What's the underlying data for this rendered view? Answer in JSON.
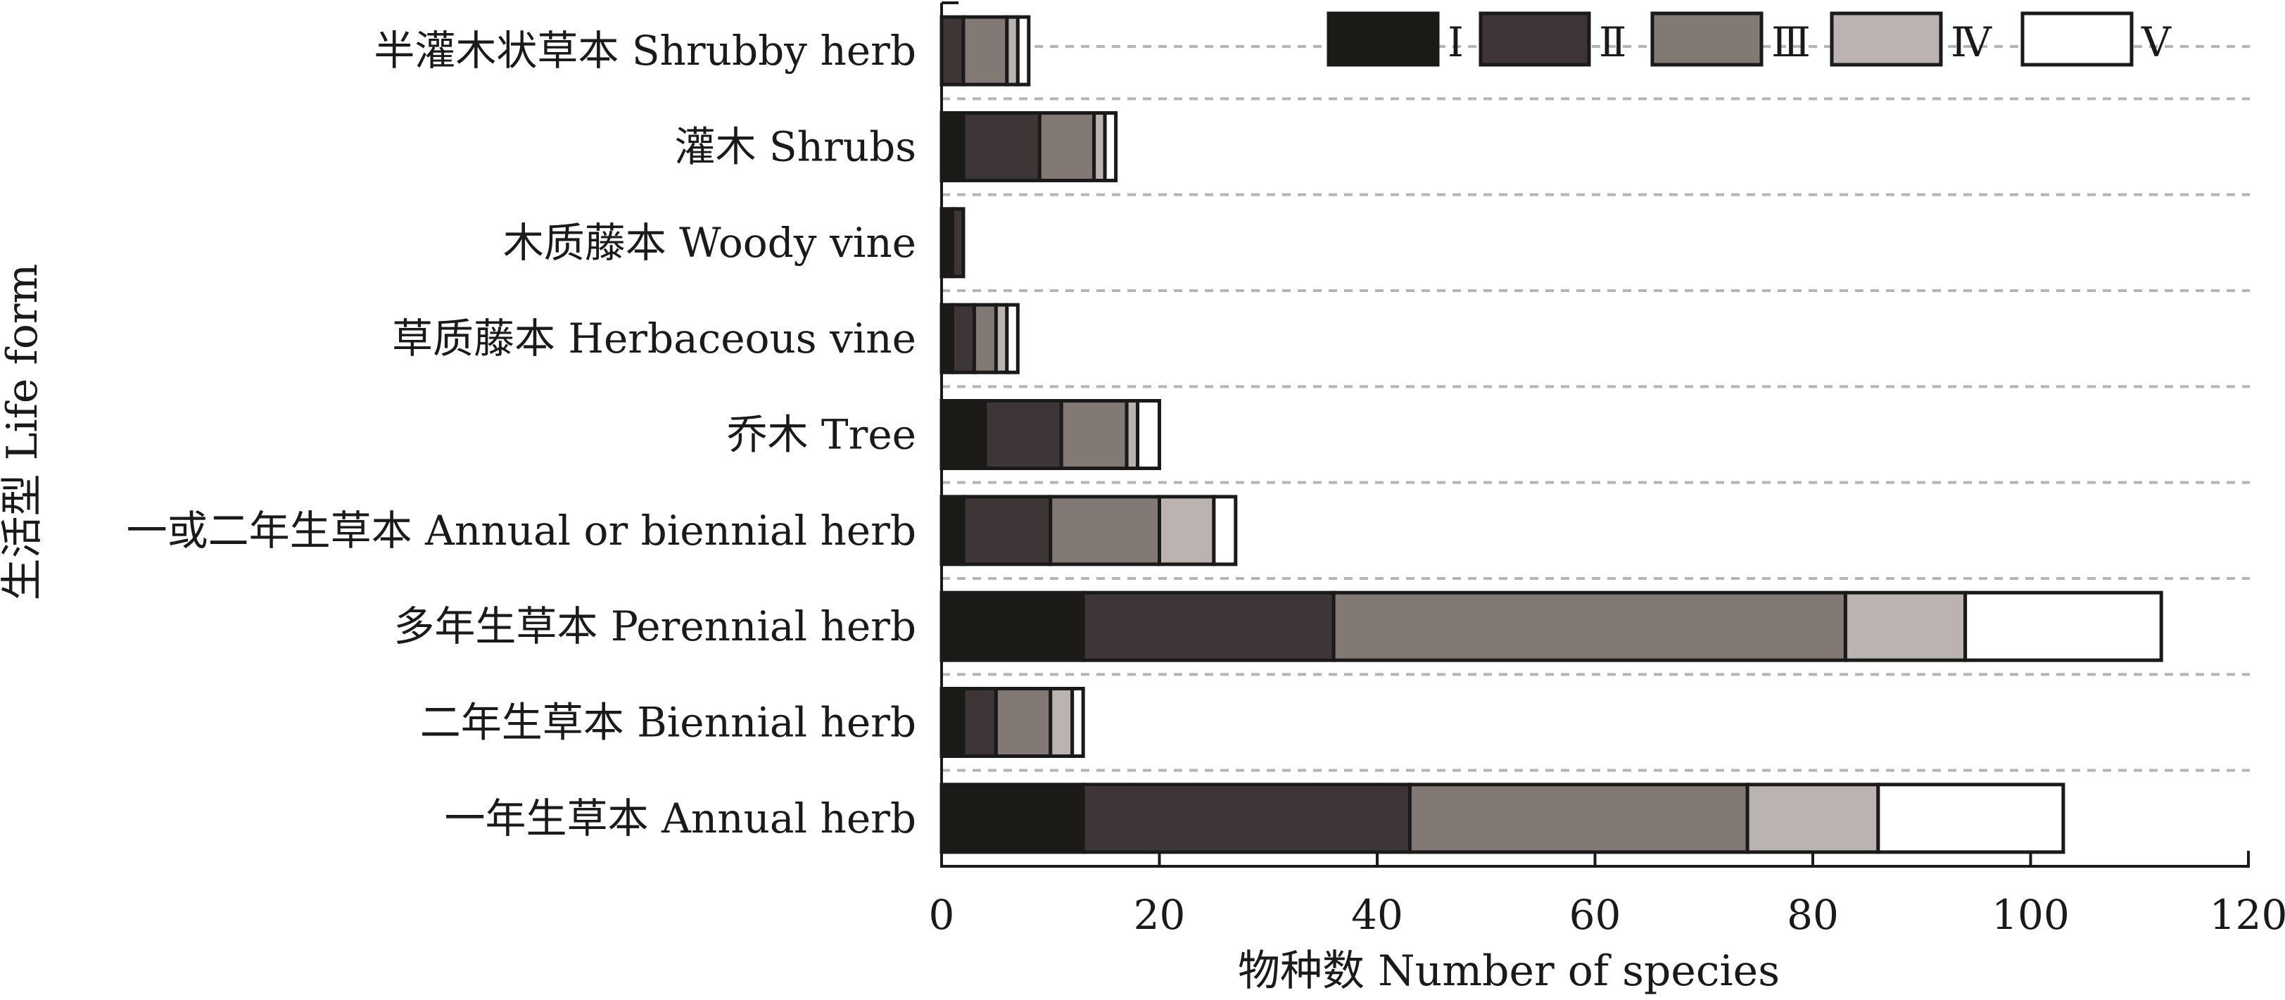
{
  "chart_data": {
    "type": "bar",
    "orientation": "horizontal",
    "stacked": true,
    "categories": [
      "一年生草本 Annual herb",
      "二年生草本 Biennial herb",
      "多年生草本 Perennial herb",
      "一或二年生草本 Annual or biennial herb",
      "乔木 Tree",
      "草质藤本 Herbaceous vine",
      "木质藤本 Woody vine",
      "灌木 Shrubs",
      "半灌木状草本 Shrubby herb"
    ],
    "series": [
      {
        "name": "Ⅰ",
        "color": "#1c1a17",
        "values": [
          13,
          2,
          13,
          2,
          4,
          1,
          1,
          2,
          0
        ]
      },
      {
        "name": "Ⅱ",
        "color": "#3e3536",
        "values": [
          30,
          3,
          23,
          8,
          7,
          2,
          1,
          7,
          2
        ]
      },
      {
        "name": "Ⅲ",
        "color": "#827874",
        "values": [
          31,
          5,
          47,
          10,
          6,
          2,
          0,
          5,
          4
        ]
      },
      {
        "name": "Ⅳ",
        "color": "#bbb3b0",
        "values": [
          12,
          2,
          11,
          5,
          1,
          1,
          0,
          1,
          1
        ]
      },
      {
        "name": "Ⅴ",
        "color": "#ffffff",
        "values": [
          17,
          1,
          18,
          2,
          2,
          1,
          0,
          1,
          1
        ]
      }
    ],
    "xlabel": "物种数 Number of species",
    "ylabel": "生活型 Life form",
    "xlim": [
      0,
      120
    ],
    "xticks": [
      "0",
      "20",
      "40",
      "60",
      "80",
      "100",
      "120"
    ],
    "grid": "dashed horizontal",
    "legend_position": "top-right"
  }
}
